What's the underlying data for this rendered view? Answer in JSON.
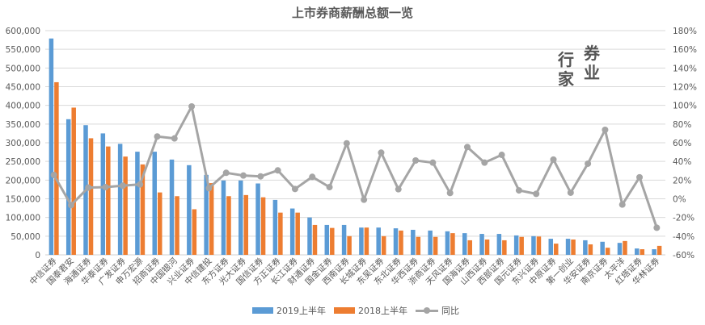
{
  "chart_data": {
    "type": "bar",
    "title": "上市券商薪酬总额一览",
    "categories": [
      "中信证券",
      "国泰君安",
      "海通证券",
      "华泰证券",
      "广发证券",
      "申万宏源",
      "招商证券",
      "中国银河",
      "兴业证券",
      "中信建投",
      "东方证券",
      "光大证券",
      "国信证券",
      "方正证券",
      "长江证券",
      "财通证券",
      "国金证券",
      "西南证券",
      "长城证券",
      "东吴证券",
      "东北证券",
      "华西证券",
      "浙商证券",
      "天风证券",
      "国海证券",
      "山西证券",
      "西部证券",
      "国元证券",
      "东兴证券",
      "中原证券",
      "第一创业",
      "华安证券",
      "南京证券",
      "太平洋",
      "红塔证券",
      "华林证券"
    ],
    "series": [
      {
        "name": "2019上半年",
        "type": "bar",
        "axis": "left",
        "color": "#5b9bd5",
        "values": [
          579000,
          363000,
          347000,
          325000,
          297000,
          276000,
          276000,
          255000,
          240000,
          214000,
          199000,
          199000,
          191000,
          147000,
          124000,
          100000,
          80000,
          80000,
          73000,
          73000,
          71000,
          67000,
          65000,
          63000,
          58000,
          56000,
          56000,
          52000,
          50000,
          43000,
          43000,
          39000,
          35000,
          32000,
          17000,
          15000
        ]
      },
      {
        "name": "2018上半年",
        "type": "bar",
        "axis": "left",
        "color": "#ed7d31",
        "values": [
          462000,
          394000,
          312000,
          290000,
          263000,
          242000,
          167000,
          157000,
          122000,
          192000,
          157000,
          160000,
          154000,
          113000,
          113000,
          80000,
          72000,
          50000,
          73000,
          50000,
          65000,
          48000,
          48000,
          58000,
          39000,
          41000,
          39000,
          48000,
          49000,
          30000,
          41000,
          28000,
          19000,
          37000,
          15000,
          24000
        ]
      },
      {
        "name": "同比",
        "type": "line",
        "axis": "right",
        "color": "#a5a5a5",
        "values": [
          25.5,
          -6.7,
          12.0,
          12.5,
          14.0,
          15.4,
          66.7,
          64.6,
          98.9,
          11.4,
          27.8,
          24.9,
          24.0,
          30.4,
          10.5,
          23.5,
          12.5,
          59.4,
          -1.0,
          49.4,
          10.2,
          41.0,
          38.7,
          6.2,
          55.4,
          38.7,
          47.0,
          9.0,
          5.3,
          42.0,
          6.5,
          37.6,
          73.8,
          -6.2,
          23.0,
          -31.0
        ]
      }
    ],
    "y_left": {
      "min": 0,
      "max": 600000,
      "step": 50000,
      "ticks": [
        "0",
        "50,000",
        "100,000",
        "150,000",
        "200,000",
        "250,000",
        "300,000",
        "350,000",
        "400,000",
        "450,000",
        "500,000",
        "550,000",
        "600,000"
      ]
    },
    "y_right": {
      "min": -60,
      "max": 180,
      "step": 20,
      "ticks": [
        "-60%",
        "-40%",
        "-20%",
        "0%",
        "20%",
        "40%",
        "60%",
        "80%",
        "100%",
        "120%",
        "140%",
        "160%",
        "180%"
      ]
    },
    "xlabel": "",
    "ylabel": "",
    "grid": true,
    "legend_position": "bottom"
  },
  "legend": [
    {
      "label": "2019上半年",
      "color": "#5b9bd5"
    },
    {
      "label": "2018上半年",
      "color": "#ed7d31"
    },
    {
      "label": "同比",
      "color": "#a5a5a5"
    }
  ],
  "watermark": {
    "col1": [
      "行",
      "家"
    ],
    "col2": [
      "券",
      "业"
    ]
  }
}
